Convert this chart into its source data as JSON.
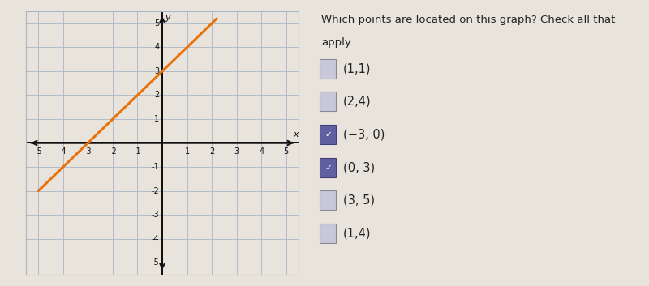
{
  "line_color": "#E8720C",
  "line_width": 2.2,
  "line_x": [
    -5.0,
    2.2
  ],
  "line_y": [
    -2.0,
    5.2
  ],
  "grid_color": "#aab4c8",
  "axis_color": "#111111",
  "background_color": "#e8e4dc",
  "plot_bg_color": "#e8e4dc",
  "graph_border_color": "#aab4c8",
  "xlim": [
    -5.5,
    5.5
  ],
  "ylim": [
    -5.5,
    5.5
  ],
  "tick_vals": [
    -5,
    -4,
    -3,
    -2,
    -1,
    1,
    2,
    3,
    4,
    5
  ],
  "question_text_line1": "Which points are located on this graph? Check all that",
  "question_text_line2": "apply.",
  "choices": [
    {
      "label": "(1,1)",
      "checked": false
    },
    {
      "label": "(2,4)",
      "checked": false
    },
    {
      "label": "(−3, 0)",
      "checked": true
    },
    {
      "label": "(0, 3)",
      "checked": true
    },
    {
      "label": "(3, 5)",
      "checked": false
    },
    {
      "label": "(1,4)",
      "checked": false
    }
  ],
  "checkbox_size": 10,
  "checkbox_color_unchecked_face": "#c8c8d8",
  "checkbox_color_unchecked_edge": "#888898",
  "checkbox_color_checked_face": "#6060a0",
  "checkbox_color_checked_edge": "#4040808",
  "text_color": "#222222",
  "question_fontsize": 9.5,
  "choice_fontsize": 10.5,
  "tick_fontsize": 7
}
